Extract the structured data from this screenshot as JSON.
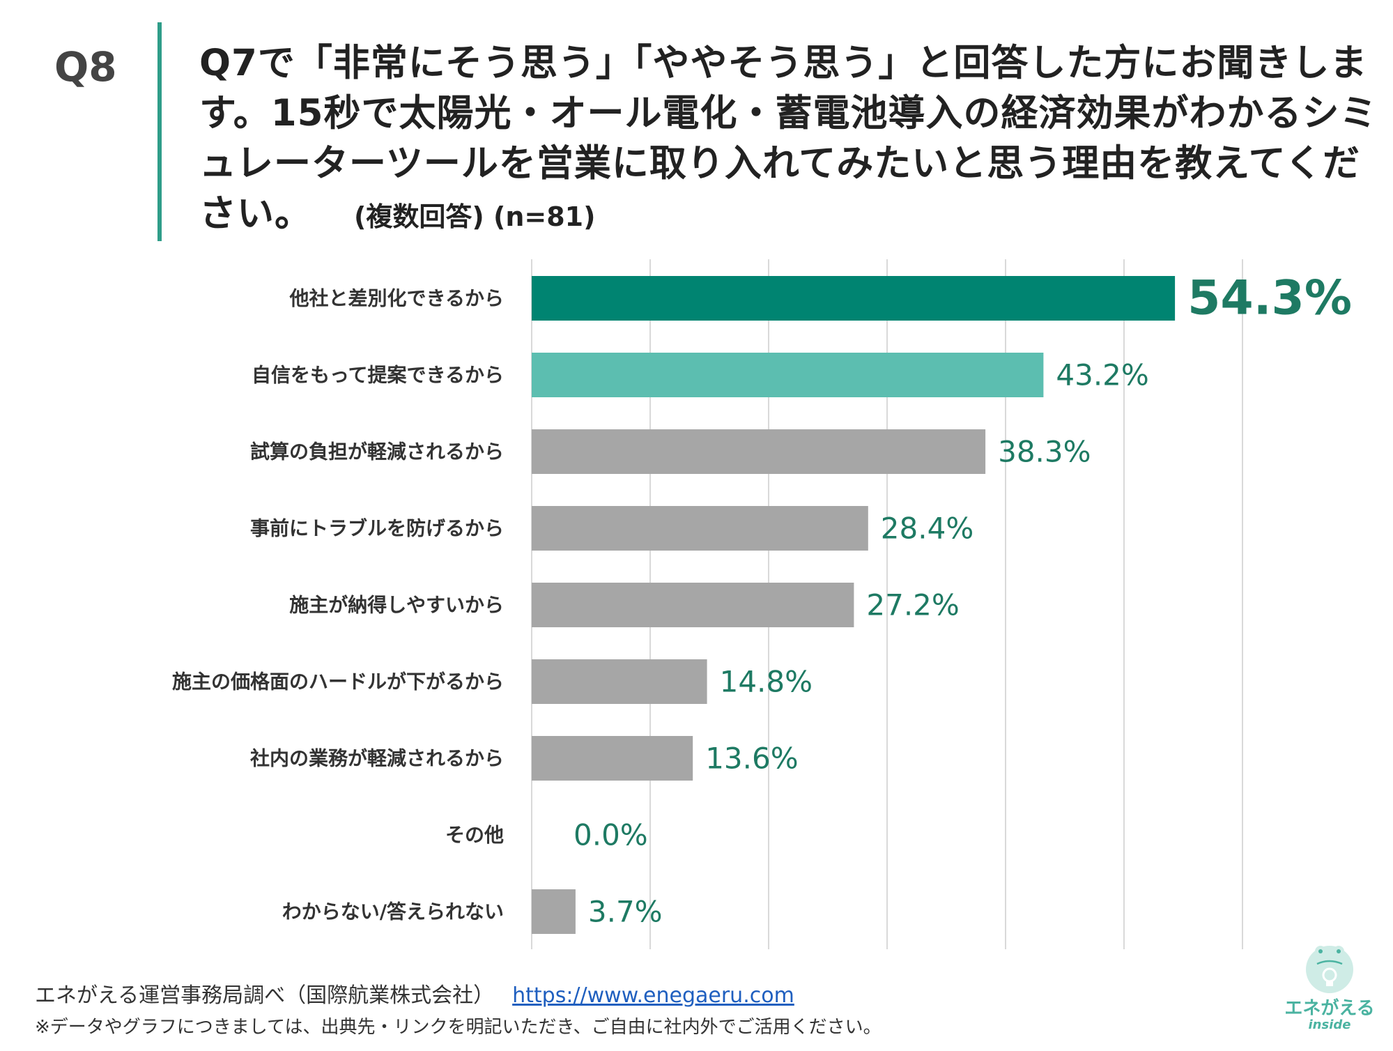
{
  "header": {
    "q_label": "Q8",
    "question": "Q7で「非常にそう思う」「ややそう思う」と回答した方にお聞きします。15秒で太陽光・オール電化・蓄電池導入の経済効果がわかるシミュレーターツールを営業に取り入れてみたいと思う理由を教えてください。",
    "note": "(複数回答) (n=81)"
  },
  "chart_data": {
    "type": "bar",
    "orientation": "horizontal",
    "categories": [
      "他社と差別化できるから",
      "自信をもって提案できるから",
      "試算の負担が軽減されるから",
      "事前にトラブルを防げるから",
      "施主が納得しやすいから",
      "施主の価格面のハードルが下がるから",
      "社内の業務が軽減されるから",
      "その他",
      "わからない/答えられない"
    ],
    "values": [
      54.3,
      43.2,
      38.3,
      28.4,
      27.2,
      14.8,
      13.6,
      0.0,
      3.7
    ],
    "value_labels": [
      "54.3%",
      "43.2%",
      "38.3%",
      "28.4%",
      "27.2%",
      "14.8%",
      "13.6%",
      "0.0%",
      "3.7%"
    ],
    "xlim": [
      0,
      60
    ],
    "grid": true,
    "colors": {
      "highlight_1": "#008471",
      "highlight_2": "#5cbeb0",
      "default": "#a6a6a6",
      "label": "#1e7a63",
      "grid": "#d9d9d9"
    }
  },
  "footer": {
    "source": "エネがえる運営事務局調べ（国際航業株式会社）",
    "link": "https://www.enegaeru.com",
    "note": "※データやグラフにつきましては、出典先・リンクを明記いただき、ご自由に社内外でご活用ください。"
  },
  "logo": {
    "text": "エネがえる",
    "sub": "inside",
    "icon": "lightbulb-mascot-icon"
  }
}
